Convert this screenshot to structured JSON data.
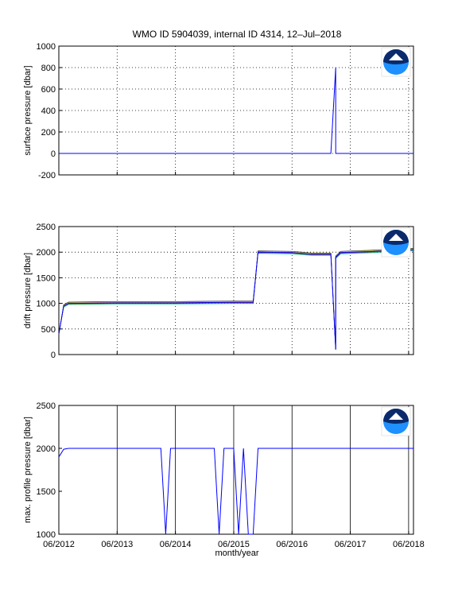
{
  "title": "WMO ID 5904039, internal ID 4314, 12–Jul–2018",
  "xlabel": "month/year",
  "x_tick_labels": [
    "06/2012",
    "06/2013",
    "06/2014",
    "06/2015",
    "06/2016",
    "06/2017",
    "06/2018"
  ],
  "colors": {
    "series": "#0000ff",
    "cyan": "#00bfbf",
    "green": "#008000",
    "red": "#ff0000",
    "magenta": "#bf00bf",
    "olive": "#bfbf00",
    "black": "#000000"
  },
  "logo_icon": "noaa-logo-icon",
  "chart_data": [
    {
      "type": "line",
      "ylabel": "surface pressure [dbar]",
      "xlim": [
        "2012-06",
        "2018-07"
      ],
      "ylim": [
        -200,
        1000
      ],
      "yticks": [
        -200,
        0,
        200,
        400,
        600,
        800,
        1000
      ],
      "grid": "dotted",
      "series": [
        {
          "x": [
            "2012-06",
            "2017-02",
            "2017-03",
            "2017-03",
            "2017-04",
            "2018-07"
          ],
          "y": [
            0,
            0,
            800,
            0,
            0,
            0
          ]
        }
      ]
    },
    {
      "type": "line",
      "ylabel": "drift pressure [dbar]",
      "xlim": [
        "2012-06",
        "2018-07"
      ],
      "ylim": [
        2500,
        0
      ],
      "yticks": [
        0,
        500,
        1000,
        1500,
        2000,
        2500
      ],
      "grid": "dotted",
      "series": [
        {
          "x": [
            "2012-06",
            "2012-07",
            "2012-08",
            "2013-06",
            "2014-06",
            "2015-06",
            "2015-10",
            "2015-11",
            "2016-06",
            "2016-10",
            "2017-02",
            "2017-03",
            "2017-03",
            "2017-04",
            "2017-10",
            "2018-07"
          ],
          "y": [
            400,
            950,
            1000,
            1010,
            1010,
            1020,
            1020,
            2000,
            1990,
            1960,
            1960,
            100,
            1900,
            1990,
            2010,
            2050
          ]
        }
      ]
    },
    {
      "type": "line",
      "ylabel": "max. profile pressure [dbar]",
      "xlim": [
        "2012-06",
        "2018-07"
      ],
      "ylim": [
        2500,
        1000
      ],
      "yticks": [
        1000,
        1500,
        2000,
        2500
      ],
      "grid": "solid-vertical",
      "series": [
        {
          "x": [
            "2012-06",
            "2012-07",
            "2012-08",
            "2013-06",
            "2014-03",
            "2014-04",
            "2014-05",
            "2015-02",
            "2015-03",
            "2015-04",
            "2015-06",
            "2015-07",
            "2015-08",
            "2015-09",
            "2015-10",
            "2015-11",
            "2016-06",
            "2017-06",
            "2018-07"
          ],
          "y": [
            1900,
            1990,
            2000,
            2000,
            2000,
            1000,
            2000,
            2000,
            1000,
            2000,
            2000,
            1000,
            2000,
            1000,
            1000,
            2000,
            2000,
            2000,
            2000
          ]
        }
      ]
    }
  ]
}
